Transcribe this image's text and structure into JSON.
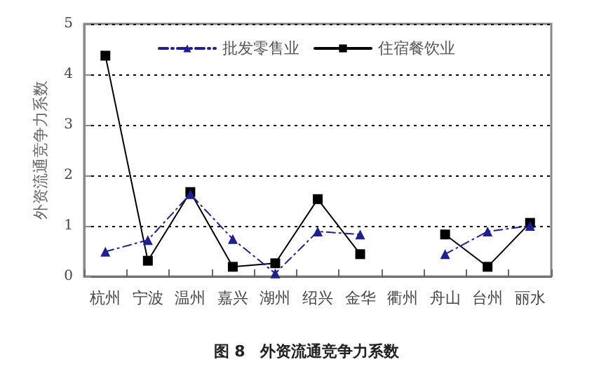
{
  "chart_data": {
    "type": "line",
    "title": "图 8　外资流通竞争力系数",
    "ylabel": "外资流通竞争力系数",
    "categories": [
      "杭州",
      "宁波",
      "温州",
      "嘉兴",
      "湖州",
      "绍兴",
      "金华",
      "衢州",
      "舟山",
      "台州",
      "丽水"
    ],
    "series": [
      {
        "name": "批发零售业",
        "color": "#1f1f8f",
        "marker": "triangle",
        "line_style": "dashed",
        "values": [
          0.49,
          0.72,
          1.63,
          0.74,
          0.06,
          0.89,
          0.83,
          null,
          0.44,
          0.89,
          1.0
        ]
      },
      {
        "name": "住宿餐饮业",
        "color": "#000000",
        "marker": "square",
        "line_style": "solid",
        "values": [
          4.37,
          0.31,
          1.67,
          0.19,
          0.26,
          1.53,
          0.44,
          null,
          0.83,
          0.19,
          1.06
        ]
      }
    ],
    "ylim": [
      0,
      5
    ],
    "yticks": [
      0,
      1,
      2,
      3,
      4,
      5
    ],
    "grid": "y",
    "legend": "top"
  }
}
